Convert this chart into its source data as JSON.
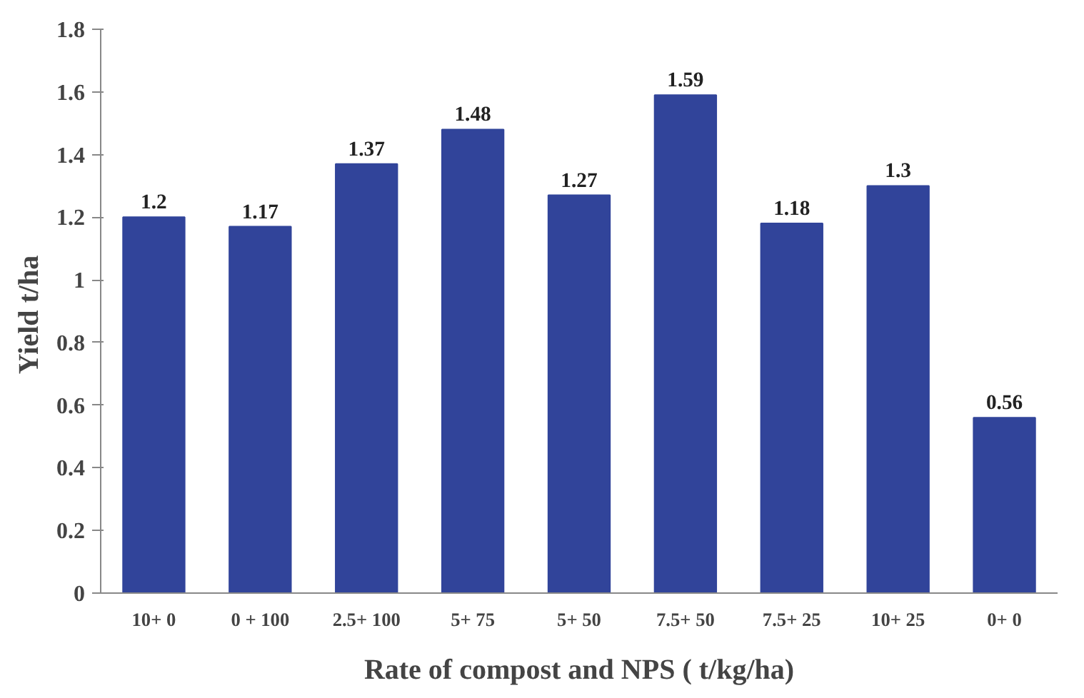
{
  "chart_data": {
    "type": "bar",
    "xlabel": "Rate of compost and NPS ( t/kg/ha)",
    "ylabel": "Yield  t/ha",
    "categories": [
      "10+ 0",
      "0 + 100",
      "2.5+ 100",
      "5+ 75",
      "5+ 50",
      "7.5+ 50",
      "7.5+ 25",
      "10+ 25",
      "0+ 0"
    ],
    "values": [
      1.2,
      1.17,
      1.37,
      1.48,
      1.27,
      1.59,
      1.18,
      1.3,
      0.56
    ],
    "color": "#31449a",
    "ylim": [
      0,
      1.8
    ],
    "yticks": [
      0,
      0.2,
      0.4,
      0.6,
      0.8,
      1,
      1.2,
      1.4,
      1.6,
      1.8
    ],
    "data_labels": true,
    "grid": false
  }
}
